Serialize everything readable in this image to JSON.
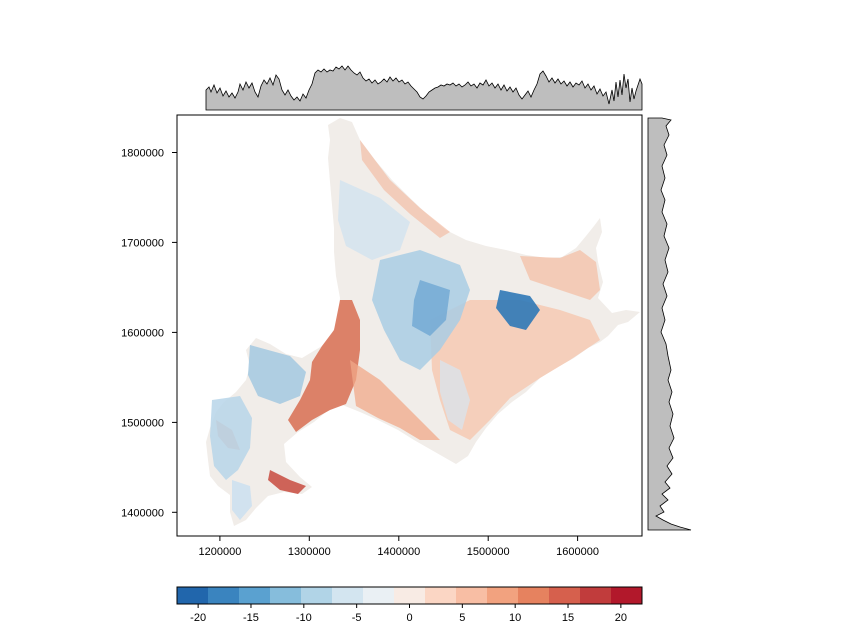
{
  "chart_data": {
    "type": "heatmap",
    "title": "",
    "xlabel": "",
    "ylabel": "",
    "xlim": [
      1150000,
      1670000
    ],
    "ylim": [
      1372000,
      1840000
    ],
    "x_ticks": [
      1200000,
      1300000,
      1400000,
      1500000,
      1600000
    ],
    "x_tick_labels": [
      "1200000",
      "1300000",
      "1400000",
      "1500000",
      "1600000"
    ],
    "y_ticks": [
      1400000,
      1500000,
      1600000,
      1700000,
      1800000
    ],
    "y_tick_labels": [
      "1400000",
      "1500000",
      "1600000",
      "1700000",
      "1800000"
    ],
    "colorbar": {
      "range": [
        -22,
        22
      ],
      "ticks": [
        -20,
        -15,
        -10,
        -5,
        0,
        5,
        10,
        15,
        20
      ],
      "tick_labels": [
        "-20",
        "-15",
        "-10",
        "-5",
        "0",
        "5",
        "10",
        "15",
        "20"
      ],
      "colors": [
        "#2166ac",
        "#3a84bf",
        "#5aa1d0",
        "#86bddc",
        "#b1d4e7",
        "#d3e5f0",
        "#eaf0f4",
        "#f8ebe4",
        "#fbd6c4",
        "#f8bea4",
        "#f2a27f",
        "#e6825f",
        "#d6604d",
        "#c13c3c",
        "#b2182b"
      ]
    },
    "land_color_scale": "diverging blue-white-red",
    "marginal_panels": [
      "top: column mean profile",
      "right: row mean profile"
    ],
    "marginal_fill": "#bebebe"
  }
}
